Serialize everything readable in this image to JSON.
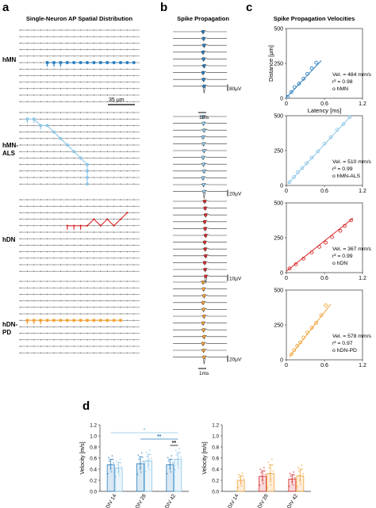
{
  "panels": [
    {
      "letter": "a",
      "title": "Single-Neuron AP Spatial Distribution"
    },
    {
      "letter": "b",
      "title": "Spike Propagation"
    },
    {
      "letter": "c",
      "title": "Spike Propagation Velocities"
    },
    {
      "letter": "d",
      "title": ""
    }
  ],
  "groups": [
    {
      "id": "hMN",
      "label": "hMN",
      "color": "#2e7fbf"
    },
    {
      "id": "hMN-ALS",
      "label": "hMN-\nALS",
      "color": "#8ec6e8"
    },
    {
      "id": "hDN",
      "label": "hDN",
      "color": "#d62a2a"
    },
    {
      "id": "hDN-PD",
      "label": "hDN-\nPD",
      "color": "#f2a33a"
    }
  ],
  "scalebars": {
    "spatial": "35 µm",
    "time": "1ms",
    "voltage": [
      "80µV",
      "20µV",
      "10µV",
      "20µV"
    ]
  },
  "chart_data": [
    {
      "type": "scatter",
      "panel": "c",
      "name": "hMN",
      "xlabel": "Latency [ms]",
      "ylabel": "Distance [µm]",
      "xlim": [
        0,
        1.2
      ],
      "ylim": [
        0,
        500
      ],
      "xticks": [
        0,
        0.6,
        1.2
      ],
      "yticks": [
        0,
        250,
        500
      ],
      "annotation": [
        "Vel. = 484 mm/s",
        "r² = 0.98",
        "o hMN"
      ],
      "color": "#2e7fbf",
      "x": [
        0.02,
        0.08,
        0.13,
        0.2,
        0.27,
        0.33,
        0.4,
        0.47
      ],
      "y": [
        10,
        45,
        80,
        105,
        140,
        175,
        215,
        255
      ],
      "fit": [
        [
          0,
          5
        ],
        [
          0.55,
          270
        ]
      ]
    },
    {
      "type": "scatter",
      "panel": "c",
      "name": "hMN-ALS",
      "xlabel": "",
      "ylabel": "",
      "xlim": [
        0,
        1.2
      ],
      "ylim": [
        0,
        500
      ],
      "xticks": [
        0,
        0.6,
        1.2
      ],
      "yticks": [
        0,
        250,
        500
      ],
      "annotation": [
        "Vel. = 510 mm/s",
        "r² = 0.99",
        "o hMN-ALS"
      ],
      "color": "#8ec6e8",
      "x": [
        0.05,
        0.12,
        0.18,
        0.25,
        0.32,
        0.4,
        0.5,
        0.6,
        0.7,
        0.8,
        0.9,
        1.0
      ],
      "y": [
        25,
        60,
        95,
        125,
        160,
        200,
        245,
        300,
        345,
        400,
        440,
        490
      ],
      "fit": [
        [
          0.02,
          10
        ],
        [
          1.02,
          500
        ]
      ]
    },
    {
      "type": "scatter",
      "panel": "c",
      "name": "hDN",
      "xlabel": "",
      "ylabel": "",
      "xlim": [
        0,
        1.2
      ],
      "ylim": [
        0,
        500
      ],
      "xticks": [
        0,
        0.6,
        1.2
      ],
      "yticks": [
        0,
        250,
        500
      ],
      "annotation": [
        "Vel. = 367 mm/s",
        "r² = 0.99",
        "o hDN"
      ],
      "color": "#d62a2a",
      "x": [
        0.05,
        0.15,
        0.27,
        0.4,
        0.52,
        0.62,
        0.72,
        0.85,
        0.92,
        1.02
      ],
      "y": [
        30,
        60,
        100,
        145,
        185,
        215,
        255,
        300,
        335,
        375
      ],
      "fit": [
        [
          0,
          10
        ],
        [
          1.05,
          390
        ]
      ]
    },
    {
      "type": "scatter",
      "panel": "c",
      "name": "hDN-PD",
      "xlabel": "",
      "ylabel": "",
      "xlim": [
        0,
        1.2
      ],
      "ylim": [
        0,
        500
      ],
      "xticks": [
        0,
        0.6,
        1.2
      ],
      "yticks": [
        0,
        250,
        500
      ],
      "annotation": [
        "Vel. = 578 mm/s",
        "r² = 0.97",
        "o hDN-PD"
      ],
      "color": "#f2a33a",
      "x": [
        0.08,
        0.12,
        0.17,
        0.22,
        0.27,
        0.33,
        0.4,
        0.47,
        0.55,
        0.62
      ],
      "y": [
        40,
        70,
        100,
        125,
        160,
        195,
        230,
        265,
        320,
        390
      ],
      "fit": [
        [
          0.05,
          20
        ],
        [
          0.7,
          400
        ]
      ]
    },
    {
      "type": "bar",
      "panel": "d",
      "name": "left",
      "ylabel": "Velocity [m/s]",
      "ylim": [
        0,
        1.2
      ],
      "yticks": [
        0,
        0.2,
        0.4,
        0.6,
        0.8,
        1.0,
        1.2
      ],
      "categories": [
        "DIV 14",
        "DIV 28",
        "DIV 42"
      ],
      "series": [
        {
          "name": "hMN",
          "color": "#2e7fbf",
          "values": [
            0.48,
            0.5,
            0.48
          ],
          "err": [
            0.1,
            0.12,
            0.1
          ]
        },
        {
          "name": "hMN-ALS",
          "color": "#8ec6e8",
          "values": [
            0.42,
            0.55,
            0.58
          ],
          "err": [
            0.1,
            0.12,
            0.12
          ]
        }
      ],
      "significance": [
        {
          "from": 0,
          "to": 2,
          "label": "*",
          "color": "#8ec6e8"
        },
        {
          "from": 1,
          "to": 2,
          "label": "**",
          "color": "#2e7fbf"
        },
        {
          "from": 2,
          "to": 2,
          "label": "**",
          "color": "#111111"
        }
      ],
      "legend": [
        "hMN",
        "hMN-ALS"
      ]
    },
    {
      "type": "bar",
      "panel": "d",
      "name": "right",
      "ylabel": "Velocity [m/s]",
      "ylim": [
        0,
        1.2
      ],
      "yticks": [
        0,
        0.2,
        0.4,
        0.6,
        0.8,
        1.0,
        1.2
      ],
      "categories": [
        "DIV 14",
        "DIV 28",
        "DIV 42"
      ],
      "series": [
        {
          "name": "hDN",
          "color": "#d62a2a",
          "values": [
            0,
            0.27,
            0.22
          ],
          "err": [
            0,
            0.1,
            0.08
          ]
        },
        {
          "name": "hDN-PD",
          "color": "#f2a33a",
          "values": [
            0.2,
            0.32,
            0.28
          ],
          "err": [
            0.08,
            0.16,
            0.12
          ]
        }
      ],
      "legend": [
        "hDN",
        "hDN-PD"
      ]
    }
  ]
}
